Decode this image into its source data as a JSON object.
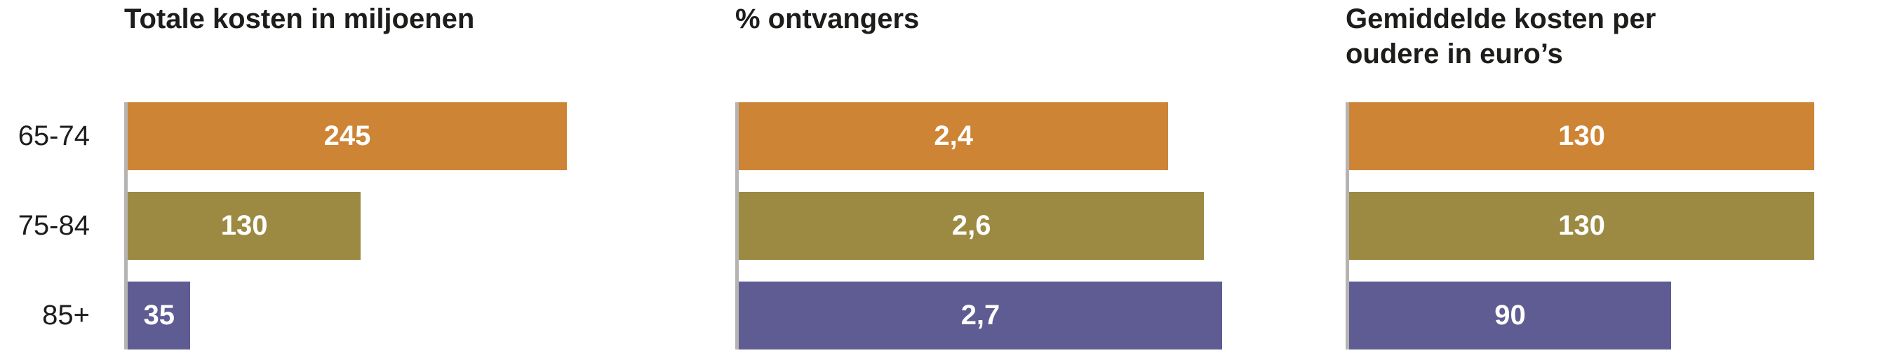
{
  "figure": {
    "background": "#ffffff",
    "text_color": "#1d1d1b",
    "axis_color": "#b6b4b2",
    "value_label_color": "#ffffff"
  },
  "chart_data": [
    {
      "type": "bar",
      "orientation": "horizontal",
      "title": "Totale kosten in miljoenen",
      "title_line1": "Totale kosten in miljoenen",
      "title_line2": "",
      "categories": [
        "65-74",
        "75-84",
        "85+"
      ],
      "values": [
        245,
        130,
        35
      ],
      "value_labels": [
        "245",
        "130",
        "35"
      ],
      "xlim": [
        0,
        245
      ],
      "bar_colors": [
        "#cd8434",
        "#9c8a42",
        "#5f5b93"
      ],
      "grid": false,
      "legend": false,
      "value_label_position": "center-inside"
    },
    {
      "type": "bar",
      "orientation": "horizontal",
      "title": "% ontvangers",
      "title_line1": "% ontvangers",
      "title_line2": "",
      "categories": [
        "65-74",
        "75-84",
        "85+"
      ],
      "values": [
        2.4,
        2.6,
        2.7
      ],
      "value_labels": [
        "2,4",
        "2,6",
        "2,7"
      ],
      "xlim": [
        0,
        2.7
      ],
      "bar_colors": [
        "#cd8434",
        "#9c8a42",
        "#5f5b93"
      ],
      "grid": false,
      "legend": false,
      "value_label_position": "center-inside"
    },
    {
      "type": "bar",
      "orientation": "horizontal",
      "title": "Gemiddelde kosten per oudere in euro’s",
      "title_line1": "Gemiddelde kosten per",
      "title_line2": "oudere in euro’s",
      "categories": [
        "65-74",
        "75-84",
        "85+"
      ],
      "values": [
        130,
        130,
        90
      ],
      "value_labels": [
        "130",
        "130",
        "90"
      ],
      "xlim": [
        0,
        130
      ],
      "bar_colors": [
        "#cd8434",
        "#9c8a42",
        "#5f5b93"
      ],
      "grid": false,
      "legend": false,
      "value_label_position": "center-inside"
    }
  ]
}
